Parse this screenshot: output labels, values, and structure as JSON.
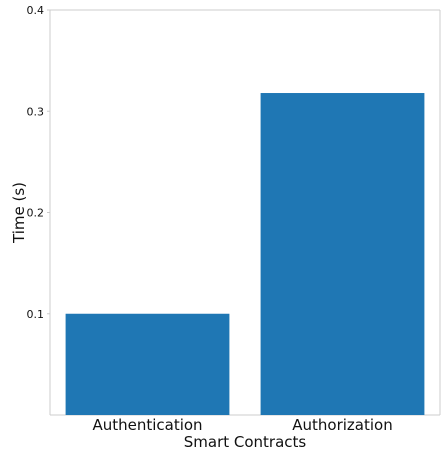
{
  "chart_data": {
    "type": "bar",
    "categories": [
      "Authentication",
      "Authorization"
    ],
    "values": [
      0.1,
      0.318
    ],
    "xlabel": "Smart Contracts",
    "ylabel": "Time (s)",
    "ylim": [
      0,
      0.4
    ],
    "yticks": [
      "0.1",
      "0.2",
      "0.3",
      "0.4"
    ],
    "grid": false,
    "bar_color": "#1f77b4",
    "axis_color": "#cccccc"
  }
}
